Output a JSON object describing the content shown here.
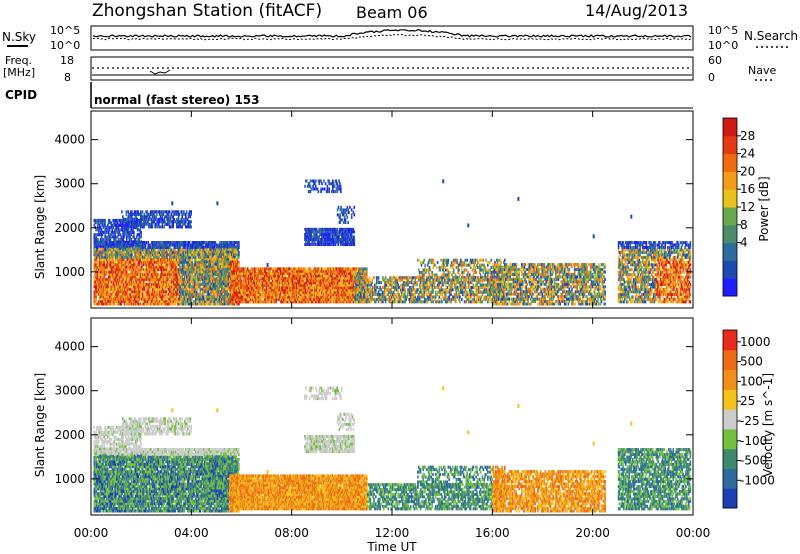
{
  "header": {
    "title": "Zhongshan Station (fitACF)",
    "beam": "Beam 06",
    "date": "14/Aug/2013"
  },
  "strip1": {
    "left_label": "N.Sky",
    "right_label": "N.Search",
    "left_ticks": [
      "10^5",
      "10^0"
    ],
    "right_ticks": [
      "10^5",
      "10^0"
    ]
  },
  "strip2": {
    "left_label_1": "Freq.",
    "left_label_2": "[MHz]",
    "right_label": "Nave",
    "left_ticks": [
      "18",
      "8"
    ],
    "right_ticks": [
      "60",
      "0"
    ]
  },
  "cpid": {
    "label": "CPID",
    "text": "normal (fast stereo) 153"
  },
  "chart_data": [
    {
      "type": "heatmap",
      "name": "power-panel",
      "ylabel": "Slant Range [km]",
      "xlabel": "",
      "x_ticks": [
        "00:00",
        "04:00",
        "08:00",
        "12:00",
        "16:00",
        "20:00",
        "00:00"
      ],
      "y_ticks": [
        1000,
        2000,
        3000,
        4000
      ],
      "xlim_hours": [
        0,
        24
      ],
      "ylim_km": [
        180,
        4650
      ],
      "colorbar": {
        "label": "Power [dB]",
        "ticks": [
          "28",
          "24",
          "20",
          "16",
          "12",
          "8",
          "4"
        ],
        "colors": [
          "#1e1eff",
          "#1c4bb0",
          "#2e6b9e",
          "#4c8c6a",
          "#6aa84f",
          "#e9c21b",
          "#f59b1a",
          "#f26a0f",
          "#e33a12",
          "#d11a15"
        ]
      }
    },
    {
      "type": "heatmap",
      "name": "velocity-panel",
      "ylabel": "Slant Range [km]",
      "xlabel": "Time UT",
      "x_ticks": [
        "00:00",
        "04:00",
        "08:00",
        "12:00",
        "16:00",
        "20:00",
        "00:00"
      ],
      "y_ticks": [
        1000,
        2000,
        3000,
        4000
      ],
      "xlim_hours": [
        0,
        24
      ],
      "ylim_km": [
        180,
        4650
      ],
      "colorbar": {
        "label": "Velocity [m s^-1]",
        "ticks": [
          "1000",
          "500",
          "100",
          "25",
          "-25",
          "-100",
          "-500",
          "-1000"
        ],
        "colors": [
          "#1b3fb5",
          "#2e6b9e",
          "#3c8a6e",
          "#74c040",
          "#cccccc",
          "#f4c21a",
          "#f09018",
          "#ee6a14",
          "#ea2b1b"
        ]
      }
    }
  ]
}
